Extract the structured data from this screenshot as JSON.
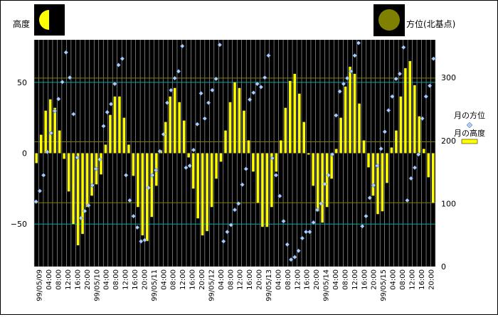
{
  "chart_data": {
    "type": "bar+scatter",
    "title": "",
    "left_axis_title": "高度",
    "right_axis_title": "方位(北基点)",
    "left_axis": {
      "ylim": [
        -80,
        80
      ],
      "ticks": [
        50,
        0,
        -50
      ],
      "tick_labels": [
        "50",
        "0",
        "−50"
      ]
    },
    "right_axis": {
      "ylim": [
        0,
        360
      ],
      "ticks": [
        300,
        200,
        100,
        0
      ],
      "tick_labels": [
        "300",
        "200",
        "100",
        "0"
      ]
    },
    "x_tick_labels": [
      "99/05/09",
      "04:00",
      "08:00",
      "12:00",
      "16:00",
      "20:00",
      "99/05/10",
      "04:00",
      "08:00",
      "12:00",
      "16:00",
      "20:00",
      "99/05/11",
      "04:00",
      "08:00",
      "12:00",
      "16:00",
      "20:00",
      "99/05/12",
      "04:00",
      "08:00",
      "12:00",
      "16:00",
      "20:00",
      "99/05/13",
      "04:00",
      "08:00",
      "12:00",
      "16:00",
      "20:00",
      "99/05/14",
      "04:00",
      "08:00",
      "12:00",
      "16:00",
      "20:00",
      "99/05/15",
      "04:00",
      "08:00",
      "12:00",
      "16:00",
      "20:00"
    ],
    "reference_lines": {
      "left_axis_cyan": [
        50,
        -50
      ],
      "left_axis_olive": [
        53,
        8,
        -35
      ]
    },
    "series": [
      {
        "name": "月の高度",
        "kind": "bar",
        "axis": "left",
        "values": [
          -7,
          13,
          30,
          38,
          32,
          16,
          -4,
          -27,
          -50,
          -65,
          -57,
          -38,
          -30,
          -22,
          -15,
          6,
          27,
          40,
          40,
          25,
          6,
          -16,
          -38,
          -58,
          -62,
          -45,
          -23,
          2,
          22,
          40,
          46,
          36,
          23,
          -3,
          -25,
          -46,
          -58,
          -55,
          -38,
          -18,
          -6,
          16,
          36,
          50,
          46,
          30,
          9,
          -13,
          -35,
          -52,
          -52,
          -38,
          -13,
          9,
          32,
          51,
          56,
          42,
          22,
          -1,
          -23,
          -41,
          -49,
          -38,
          -18,
          3,
          25,
          47,
          61,
          56,
          35,
          9,
          -10,
          -30,
          -43,
          -41,
          -21,
          4,
          16,
          40,
          60,
          65,
          48,
          26,
          3,
          -17,
          -35
        ]
      },
      {
        "name": "月の方位",
        "kind": "scatter",
        "axis": "right",
        "values": [
          103,
          120,
          145,
          182,
          212,
          247,
          266,
          293,
          340,
          300,
          242,
          173,
          77,
          88,
          97,
          129,
          155,
          170,
          223,
          245,
          258,
          290,
          320,
          330,
          145,
          105,
          80,
          62,
          40,
          42,
          125,
          145,
          153,
          183,
          210,
          260,
          280,
          299,
          310,
          350,
          157,
          160,
          185,
          226,
          275,
          235,
          260,
          280,
          298,
          352,
          40,
          55,
          66,
          90,
          100,
          130,
          155,
          265,
          276,
          290,
          285,
          300,
          335,
          172,
          145,
          112,
          72,
          35,
          11,
          15,
          25,
          45,
          55,
          55,
          70,
          90,
          100,
          131,
          145,
          178,
          240,
          278,
          290,
          299,
          310,
          335,
          355,
          64,
          80,
          109,
          129,
          160,
          187,
          214,
          248,
          270,
          298,
          306,
          348,
          105,
          140,
          157,
          178,
          235,
          270,
          287,
          330
        ]
      }
    ],
    "legend": {
      "position": "right-middle"
    },
    "icons": {
      "left": "half-moon-icon",
      "right": "full-moon-icon"
    },
    "colors": {
      "plot_bg": "#000000",
      "bar": "#ffff00",
      "marker": "#aaccff",
      "grid": "#bbbbbb",
      "cyan_line": "#00aaaa",
      "olive_line": "#808000"
    }
  }
}
